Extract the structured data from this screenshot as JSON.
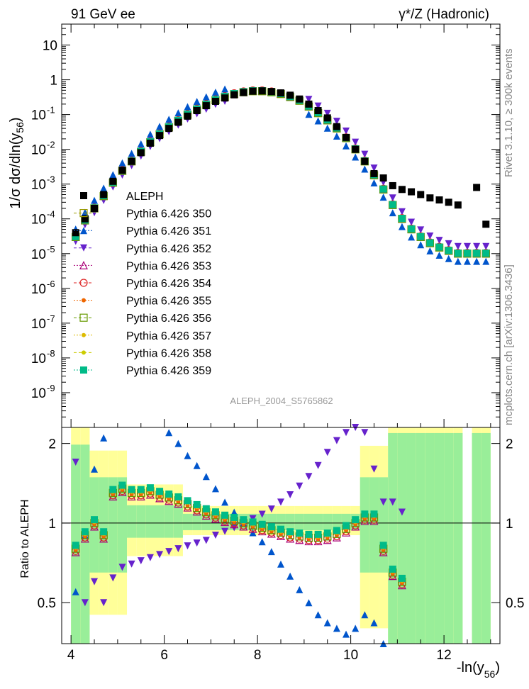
{
  "header": {
    "left": "91 GeV ee",
    "right": "γ*/Z (Hadronic)"
  },
  "side_labels": {
    "rivet": "Rivet 3.1.10, ≥ 300k events",
    "mcplots": "mcplots.cern.ch [arXiv:1306.3436]"
  },
  "analysis_id": "ALEPH_2004_S5765862",
  "axes": {
    "main_ylabel": "1/σ dσ/dln(y",
    "main_ylabel_sub": "56",
    "main_ylabel_tail": ")",
    "ratio_ylabel": "Ratio to ALEPH",
    "xlabel": "-ln(y",
    "xlabel_sub": "56",
    "xlabel_tail": ")",
    "x_ticks": [
      "4",
      "6",
      "8",
      "10",
      "12"
    ],
    "ratio_ticks": [
      "0.5",
      "1",
      "2"
    ]
  },
  "legend": [
    {
      "label": "ALEPH",
      "color": "#000000",
      "marker": "square-filled"
    },
    {
      "label": "Pythia 6.426 350",
      "color": "#999900",
      "marker": "square-open"
    },
    {
      "label": "Pythia 6.426 351",
      "color": "#0055cc",
      "marker": "triangle-up"
    },
    {
      "label": "Pythia 6.426 352",
      "color": "#6622cc",
      "marker": "triangle-down"
    },
    {
      "label": "Pythia 6.426 353",
      "color": "#aa0077",
      "marker": "triangle-open"
    },
    {
      "label": "Pythia 6.426 354",
      "color": "#dd2222",
      "marker": "circle-open"
    },
    {
      "label": "Pythia 6.426 355",
      "color": "#ee6600",
      "marker": "star"
    },
    {
      "label": "Pythia 6.426 356",
      "color": "#669900",
      "marker": "square-open"
    },
    {
      "label": "Pythia 6.426 357",
      "color": "#ddbb00",
      "marker": "arrow"
    },
    {
      "label": "Pythia 6.426 358",
      "color": "#cccc00",
      "marker": "dot"
    },
    {
      "label": "Pythia 6.426 359",
      "color": "#00bb88",
      "marker": "square-filled"
    }
  ],
  "chart_data": {
    "type": "scatter",
    "title": "",
    "xlabel": "-ln(y56)",
    "ylabel": "1/σ dσ/dln(y56)",
    "xlim": [
      3.8,
      13.2
    ],
    "ylim": [
      1e-10,
      40
    ],
    "log_y": true,
    "ratio_ylim": [
      0.35,
      2.3
    ],
    "ratio_ylabel": "Ratio to ALEPH",
    "ratio_log_y": true,
    "x": [
      4.1,
      4.3,
      4.5,
      4.7,
      4.9,
      5.1,
      5.3,
      5.5,
      5.7,
      5.9,
      6.1,
      6.3,
      6.5,
      6.7,
      6.9,
      7.1,
      7.3,
      7.5,
      7.7,
      7.9,
      8.1,
      8.3,
      8.5,
      8.7,
      8.9,
      9.1,
      9.3,
      9.5,
      9.7,
      9.9,
      10.1,
      10.3,
      10.5,
      10.7,
      10.9,
      11.1,
      11.3,
      11.5,
      11.7,
      11.9,
      12.1,
      12.3,
      12.5,
      12.7,
      12.9
    ],
    "series": [
      {
        "name": "ALEPH",
        "values": [
          4e-05,
          0.0001,
          0.0002,
          0.0005,
          0.0012,
          0.0025,
          0.0045,
          0.008,
          0.015,
          0.025,
          0.04,
          0.06,
          0.09,
          0.13,
          0.18,
          0.24,
          0.3,
          0.37,
          0.43,
          0.47,
          0.48,
          0.46,
          0.42,
          0.36,
          0.28,
          0.2,
          0.13,
          0.08,
          0.045,
          0.022,
          0.01,
          0.0045,
          0.002,
          0.0015,
          0.0009,
          0.0007,
          0.0006,
          0.0005,
          0.0004,
          0.00035,
          0.0003,
          0.00025,
          null,
          0.0008,
          7e-05
        ]
      },
      {
        "name": "Pythia 6.426 350",
        "values": [
          3e-05,
          9e-05,
          0.0002,
          0.00045,
          0.0011,
          0.0024,
          0.0045,
          0.0085,
          0.016,
          0.027,
          0.043,
          0.066,
          0.099,
          0.14,
          0.19,
          0.26,
          0.32,
          0.39,
          0.44,
          0.47,
          0.47,
          0.44,
          0.39,
          0.32,
          0.25,
          0.17,
          0.11,
          0.068,
          0.04,
          0.021,
          0.01,
          0.0045,
          0.0018,
          0.0007,
          0.00025,
          0.0001,
          5e-05,
          3e-05,
          2e-05,
          1.5e-05,
          1.2e-05,
          1e-05,
          1e-05,
          1e-05,
          1e-05
        ]
      }
    ],
    "ratio_series": [
      {
        "name": "Pythia 6.426 350",
        "values": [
          0.8,
          0.9,
          1.0,
          0.9,
          1.3,
          1.35,
          1.3,
          1.3,
          1.32,
          1.28,
          1.25,
          1.22,
          1.18,
          1.14,
          1.1,
          1.07,
          1.04,
          1.02,
          1.0,
          0.98,
          0.96,
          0.94,
          0.92,
          0.9,
          0.89,
          0.88,
          0.88,
          0.89,
          0.91,
          0.95,
          1.0,
          1.05,
          1.05,
          0.8,
          0.65,
          0.6,
          null,
          null,
          null,
          null,
          null,
          null,
          null,
          null,
          null
        ]
      },
      {
        "name": "Pythia 6.426 351",
        "values": [
          0.55,
          0.9,
          1.6,
          2.1,
          null,
          null,
          null,
          null,
          null,
          null,
          2.2,
          2.0,
          1.8,
          1.65,
          1.5,
          1.35,
          1.2,
          1.1,
          1.0,
          0.92,
          0.85,
          0.78,
          0.7,
          0.63,
          0.56,
          0.5,
          0.45,
          0.42,
          0.4,
          0.38,
          0.4,
          0.45,
          0.42,
          0.35,
          null,
          null,
          null,
          null,
          null,
          null,
          null,
          null,
          null,
          null,
          null
        ]
      },
      {
        "name": "Pythia 6.426 352",
        "values": [
          1.7,
          0.5,
          0.6,
          0.5,
          0.62,
          0.68,
          0.7,
          0.72,
          0.74,
          0.76,
          0.78,
          0.8,
          0.82,
          0.84,
          0.86,
          0.9,
          0.93,
          0.96,
          1.0,
          1.04,
          1.08,
          1.13,
          1.2,
          1.28,
          1.38,
          1.5,
          1.65,
          1.85,
          2.05,
          2.2,
          2.3,
          2.2,
          1.6,
          1.2,
          1.2,
          1.1,
          null,
          null,
          null,
          null,
          null,
          null,
          null,
          null,
          null
        ]
      }
    ]
  }
}
